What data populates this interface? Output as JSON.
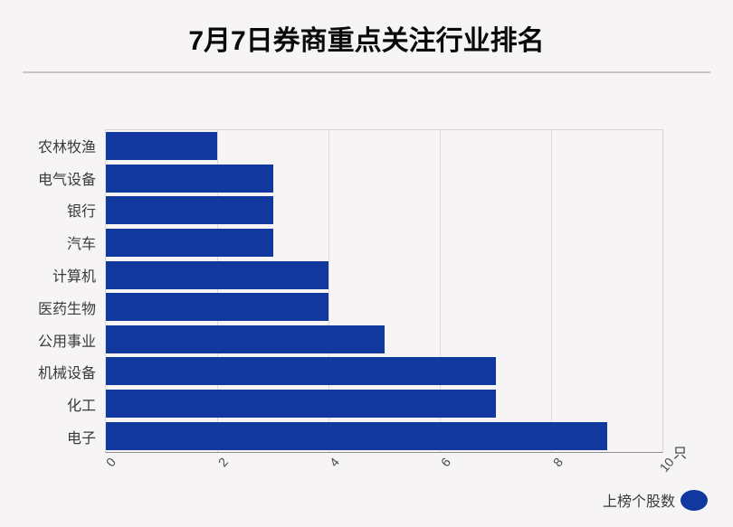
{
  "title": "7月7日券商重点关注行业排名",
  "unit_label": "只",
  "legend": {
    "label": "上榜个股数"
  },
  "colors": {
    "bar": "#11389e",
    "background": "#f7f4f5",
    "gridline": "#dcd9da",
    "axis_line": "#8f8d8e"
  },
  "chart_data": {
    "type": "bar",
    "orientation": "horizontal",
    "title": "7月7日券商重点关注行业排名",
    "series_name": "上榜个股数",
    "categories": [
      "农林牧渔",
      "电气设备",
      "银行",
      "汽车",
      "计算机",
      "医药生物",
      "公用事业",
      "机械设备",
      "化工",
      "电子"
    ],
    "values": [
      2,
      3,
      3,
      3,
      4,
      4,
      5,
      7,
      7,
      9
    ],
    "value_unit": "只",
    "xlim": [
      0,
      10
    ],
    "xticks": [
      0,
      2,
      4,
      6,
      8,
      10
    ],
    "grid": true,
    "legend_position": "bottom-right"
  }
}
